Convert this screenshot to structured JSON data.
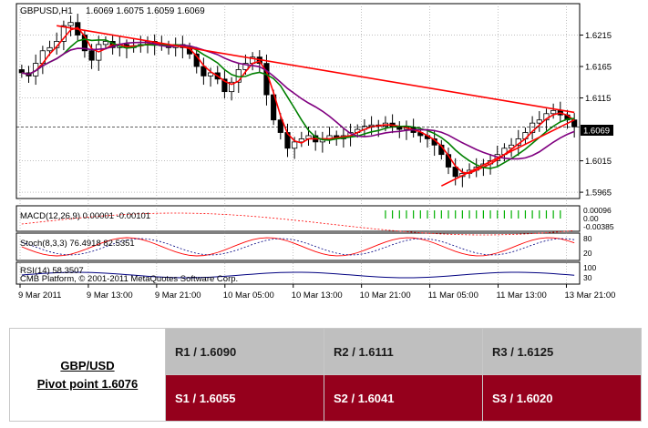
{
  "chart_header": {
    "symbol": "GBPUSD,H1",
    "ohlc": "1.6069 1.6075 1.6059 1.6069"
  },
  "colors": {
    "background": "#ffffff",
    "bull_candle": "#ffffff",
    "bear_candle": "#000000",
    "ma_fast": "#ff0000",
    "ma_mid": "#008000",
    "ma_slow": "#800080",
    "trendline": "#ff0000",
    "macd_hist": "#00b000",
    "macd_signal": "#ff0000",
    "stoch_main": "#ff0000",
    "stoch_signal": "#000080",
    "rsi": "#000080",
    "r_row": "#bfbfbf",
    "s_row": "#95001c"
  },
  "chart_data": {
    "type": "candlestick",
    "price_ticks": [
      "1.6215",
      "1.6165",
      "1.6115",
      "1.6015",
      "1.5965"
    ],
    "current_price_label": "1.6069",
    "ylim": [
      1.5955,
      1.6265
    ],
    "time_labels": [
      "9 Mar 2011",
      "9 Mar 13:00",
      "9 Mar 21:00",
      "10 Mar 05:00",
      "10 Mar 13:00",
      "10 Mar 21:00",
      "11 Mar 05:00",
      "11 Mar 13:00",
      "13 Mar 21:00"
    ],
    "closes": [
      1.6155,
      1.615,
      1.617,
      1.619,
      1.6195,
      1.6205,
      1.623,
      1.6235,
      1.6215,
      1.619,
      1.6175,
      1.62,
      1.6205,
      1.6195,
      1.62,
      1.6195,
      1.6198,
      1.62,
      1.6205,
      1.62,
      1.6198,
      1.6195,
      1.62,
      1.6195,
      1.6185,
      1.6165,
      1.615,
      1.6155,
      1.6145,
      1.6125,
      1.614,
      1.616,
      1.617,
      1.618,
      1.617,
      1.612,
      1.608,
      1.606,
      1.6035,
      1.6045,
      1.605,
      1.6055,
      1.6045,
      1.605,
      1.6055,
      1.605,
      1.6055,
      1.606,
      1.6065,
      1.607,
      1.6072,
      1.607,
      1.6075,
      1.607,
      1.6065,
      1.6068,
      1.606,
      1.6055,
      1.605,
      1.604,
      1.6025,
      1.6005,
      1.599,
      1.5995,
      1.6,
      1.6005,
      1.601,
      1.6015,
      1.6025,
      1.6035,
      1.604,
      1.605,
      1.606,
      1.6075,
      1.608,
      1.609,
      1.6095,
      1.6088,
      1.608,
      1.6069
    ],
    "trendlines": [
      {
        "x": [
          5,
          79
        ],
        "y": [
          1.623,
          1.6092
        ]
      },
      {
        "x": [
          60,
          79
        ],
        "y": [
          1.5975,
          1.608
        ]
      }
    ],
    "macd": {
      "label": "MACD(12,26,9) 0.00001 -0.00101",
      "scale_labels": [
        "0.00096",
        "0.00",
        "-0.00385"
      ]
    },
    "stoch": {
      "label": "Stoch(8,3,3) 76.4918 82.5351",
      "scale_labels": [
        "80",
        "20"
      ]
    },
    "rsi": {
      "label": "RSI(14) 58.3507",
      "scale_labels": [
        "100",
        "30"
      ]
    },
    "copyright": "CMB Platform, © 2001-2011 MetaQuotes Software Corp."
  },
  "pivot": {
    "pair": "GBP/USD",
    "pivot_label": "Pivot point 1.6076",
    "r1": "R1 / 1.6090",
    "r2": "R2 / 1.6111",
    "r3": "R3 / 1.6125",
    "s1": "S1 / 1.6055",
    "s2": "S2 / 1.6041",
    "s3": "S3 / 1.6020"
  }
}
